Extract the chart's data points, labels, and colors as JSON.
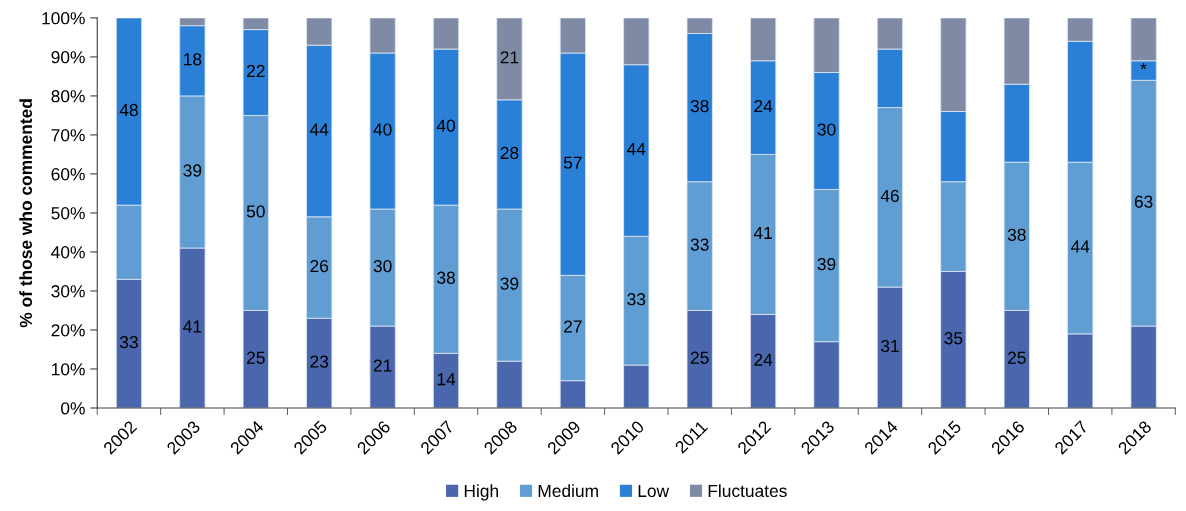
{
  "chart_data": {
    "type": "bar",
    "stacked": true,
    "ylabel": "% of those who commented",
    "categories": [
      "2002",
      "2003",
      "2004",
      "2005",
      "2006",
      "2007",
      "2008",
      "2009",
      "2010",
      "2011",
      "2012",
      "2013",
      "2014",
      "2015",
      "2016",
      "2017",
      "2018"
    ],
    "ylim": [
      0,
      100
    ],
    "yticks": [
      {
        "value": 0,
        "label": "0%"
      },
      {
        "value": 10,
        "label": "10%"
      },
      {
        "value": 20,
        "label": "20%"
      },
      {
        "value": 30,
        "label": "30%"
      },
      {
        "value": 40,
        "label": "40%"
      },
      {
        "value": 50,
        "label": "50%"
      },
      {
        "value": 60,
        "label": "60%"
      },
      {
        "value": 70,
        "label": "70%"
      },
      {
        "value": 80,
        "label": "80%"
      },
      {
        "value": 90,
        "label": "90%"
      },
      {
        "value": 100,
        "label": "100%"
      }
    ],
    "legend": "bottom",
    "grid": false,
    "series": [
      {
        "name": "High",
        "color": "#4a66ac",
        "values": [
          33,
          41,
          25,
          23,
          21,
          14,
          12,
          7,
          11,
          25,
          24,
          17,
          31,
          35,
          25,
          19,
          21
        ],
        "value_labels": [
          "33",
          "41",
          "25",
          "23",
          "21",
          "14",
          null,
          null,
          null,
          "25",
          "24",
          null,
          "31",
          "35",
          "25",
          null,
          null
        ]
      },
      {
        "name": "Medium",
        "color": "#5f9dd3",
        "values": [
          19,
          39,
          50,
          26,
          30,
          38,
          39,
          27,
          33,
          33,
          41,
          39,
          46,
          23,
          38,
          44,
          63
        ],
        "value_labels": [
          null,
          "39",
          "50",
          "26",
          "30",
          "38",
          "39",
          "27",
          "33",
          "33",
          "41",
          "39",
          "46",
          null,
          "38",
          "44",
          "63"
        ]
      },
      {
        "name": "Low",
        "color": "#2a7fd6",
        "values": [
          48,
          18,
          22,
          44,
          40,
          40,
          28,
          57,
          44,
          38,
          24,
          30,
          15,
          18,
          20,
          31,
          5
        ],
        "value_labels": [
          "48",
          "18",
          "22",
          "44",
          "40",
          "40",
          "28",
          "57",
          "44",
          "38",
          "24",
          "30",
          null,
          null,
          null,
          null,
          "*"
        ]
      },
      {
        "name": "Fluctuates",
        "color": "#7f8ba5",
        "values": [
          null,
          2,
          3,
          7,
          9,
          8,
          21,
          9,
          12,
          4,
          11,
          14,
          8,
          24,
          17,
          6,
          11
        ],
        "value_labels": [
          null,
          null,
          null,
          null,
          null,
          null,
          "21",
          null,
          null,
          null,
          null,
          null,
          null,
          null,
          null,
          null,
          null
        ]
      }
    ]
  }
}
